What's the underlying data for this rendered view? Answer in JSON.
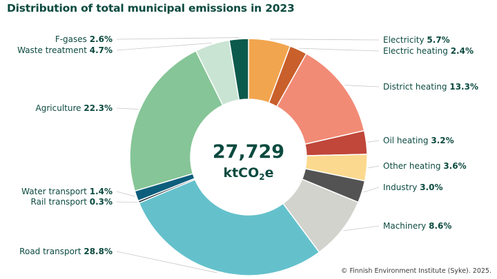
{
  "chart_data": {
    "type": "pie",
    "title": "Distribution of total municipal emissions in 2023",
    "center_value": "27,729",
    "center_unit_prefix": "ktCO",
    "center_unit_sub": "2",
    "center_unit_suffix": "e",
    "slices": [
      {
        "name": "Electricity",
        "pct_label": "5.7%",
        "value": 5.7,
        "color": "#f2a54f"
      },
      {
        "name": "Electric heating",
        "pct_label": "2.4%",
        "value": 2.4,
        "color": "#c95f2b"
      },
      {
        "name": "District heating",
        "pct_label": "13.3%",
        "value": 13.3,
        "color": "#f28b76"
      },
      {
        "name": "Oil heating",
        "pct_label": "3.2%",
        "value": 3.2,
        "color": "#c0473a"
      },
      {
        "name": "Other heating",
        "pct_label": "3.6%",
        "value": 3.6,
        "color": "#fbd98e"
      },
      {
        "name": "Industry",
        "pct_label": "3.0%",
        "value": 3.0,
        "color": "#535353"
      },
      {
        "name": "Machinery",
        "pct_label": "8.6%",
        "value": 8.6,
        "color": "#d3d3ce"
      },
      {
        "name": "Road transport",
        "pct_label": "28.8%",
        "value": 28.8,
        "color": "#64c1cc"
      },
      {
        "name": "Rail transport",
        "pct_label": "0.3%",
        "value": 0.3,
        "color": "#1b2b33"
      },
      {
        "name": "Water transport",
        "pct_label": "1.4%",
        "value": 1.4,
        "color": "#0d5e7c"
      },
      {
        "name": "Agriculture",
        "pct_label": "22.3%",
        "value": 22.3,
        "color": "#86c597"
      },
      {
        "name": "Waste treatment",
        "pct_label": "4.7%",
        "value": 4.7,
        "color": "#c9e4d3"
      },
      {
        "name": "F-gases",
        "pct_label": "2.6%",
        "value": 2.6,
        "color": "#0b5a4c"
      }
    ]
  },
  "colors": {
    "text": "#0b4a3f",
    "leader": "#c8c8c8"
  },
  "credit": "© Finnish Environment Institute (Syke). 2025."
}
